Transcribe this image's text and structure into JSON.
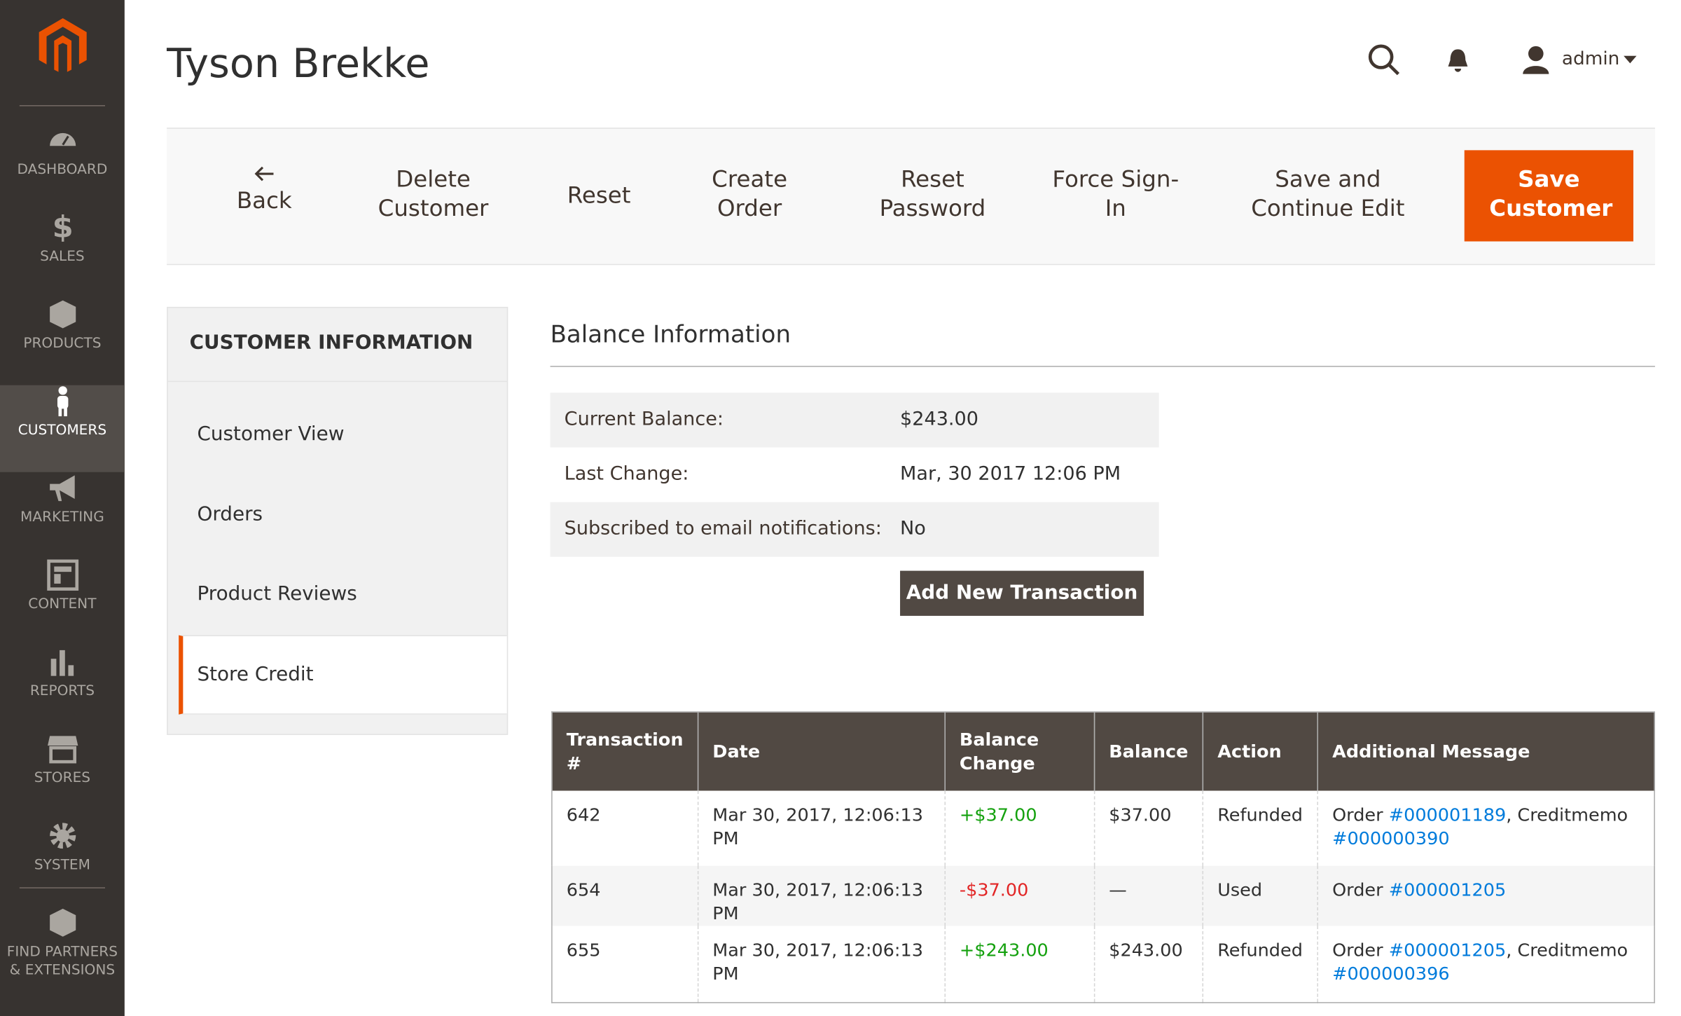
{
  "sidebar": {
    "menu": [
      "DASHBOARD",
      "SALES",
      "PRODUCTS",
      "CUSTOMERS",
      "MARKETING",
      "CONTENT",
      "REPORTS",
      "STORES",
      "SYSTEM",
      "FIND PARTNERS & EXTENSIONS"
    ]
  },
  "header": {
    "title": "Tyson Brekke",
    "user": "admin"
  },
  "toolbar": {
    "back": "Back",
    "buttons": [
      "Delete Customer",
      "Reset",
      "Create Order",
      "Reset Password",
      "Force Sign-In",
      "Save and Continue Edit"
    ],
    "primary": "Save Customer"
  },
  "nav": {
    "title": "CUSTOMER INFORMATION",
    "items": [
      "Customer View",
      "Orders",
      "Product Reviews",
      "Store Credit"
    ]
  },
  "balance": {
    "title": "Balance Information",
    "rows": [
      [
        "Current Balance:",
        "$243.00"
      ],
      [
        "Last Change:",
        "Mar, 30 2017 12:06 PM"
      ],
      [
        "Subscribed to email notifications:",
        "No"
      ]
    ],
    "button": "Add New Transaction"
  },
  "table": {
    "columns": [
      "Transaction #",
      "Date",
      "Balance Change",
      "Balance",
      "Action",
      "Additional Message"
    ],
    "rows": [
      {
        "id": "642",
        "date": "Mar 30, 2017, 12:06:13 PM",
        "change": "+$37.00",
        "balance": "$37.00",
        "action": "Refunded",
        "message": {
          "order_label": "Order",
          "order": "#000001189",
          "memo_label": ", Creditmemo",
          "memo": "#000000390"
        }
      },
      {
        "id": "654",
        "date": "Mar 30, 2017, 12:06:13 PM",
        "change": "-$37.00",
        "balance": "—",
        "action": "Used",
        "message": {
          "order_label": "Order",
          "order": "#000001205"
        }
      },
      {
        "id": "655",
        "date": "Mar 30, 2017, 12:06:13 PM",
        "change": "+$243.00",
        "balance": "$243.00",
        "action": "Refunded",
        "message": {
          "order_label": "Order",
          "order": "#000001205",
          "memo_label": ", Creditmemo",
          "memo": "#000000396"
        }
      }
    ]
  }
}
